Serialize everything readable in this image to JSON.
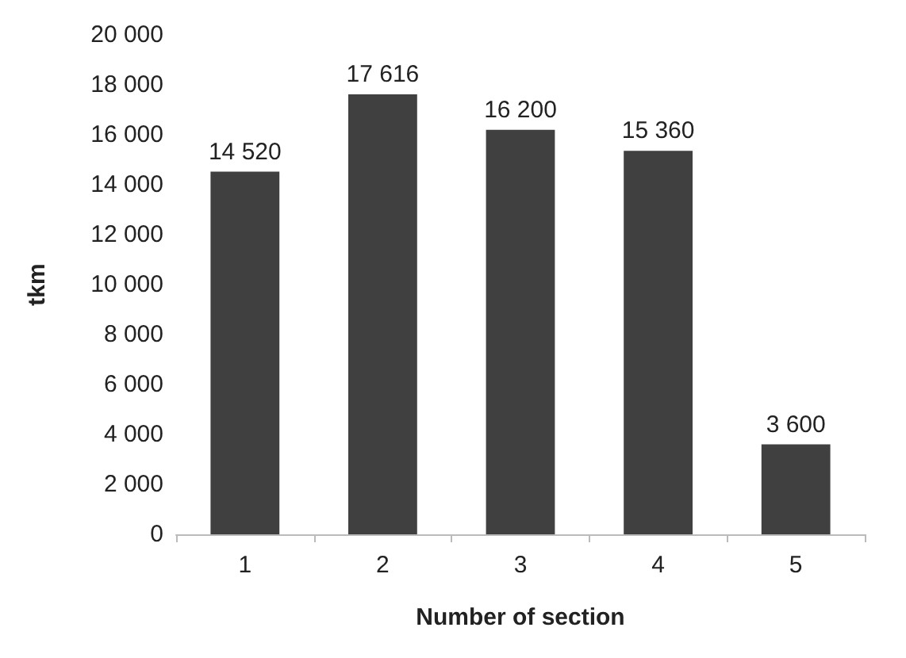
{
  "chart_data": {
    "type": "bar",
    "xlabel": "Number of section",
    "ylabel": "tkm",
    "categories": [
      "1",
      "2",
      "3",
      "4",
      "5"
    ],
    "values": [
      14520,
      17616,
      16200,
      15360,
      3600
    ],
    "value_labels": [
      "14 520",
      "17 616",
      "16 200",
      "15 360",
      "3 600"
    ],
    "color": "#404040",
    "ylim": [
      0,
      20000
    ],
    "yticks": [
      {
        "value": 0,
        "label": "0"
      },
      {
        "value": 2000,
        "label": "2 000"
      },
      {
        "value": 4000,
        "label": "4 000"
      },
      {
        "value": 6000,
        "label": "6 000"
      },
      {
        "value": 8000,
        "label": "8 000"
      },
      {
        "value": 10000,
        "label": "10 000"
      },
      {
        "value": 12000,
        "label": "12 000"
      },
      {
        "value": 14000,
        "label": "14 000"
      },
      {
        "value": 16000,
        "label": "16 000"
      },
      {
        "value": 18000,
        "label": "18 000"
      },
      {
        "value": 20000,
        "label": "20 000"
      }
    ],
    "grid": false
  }
}
